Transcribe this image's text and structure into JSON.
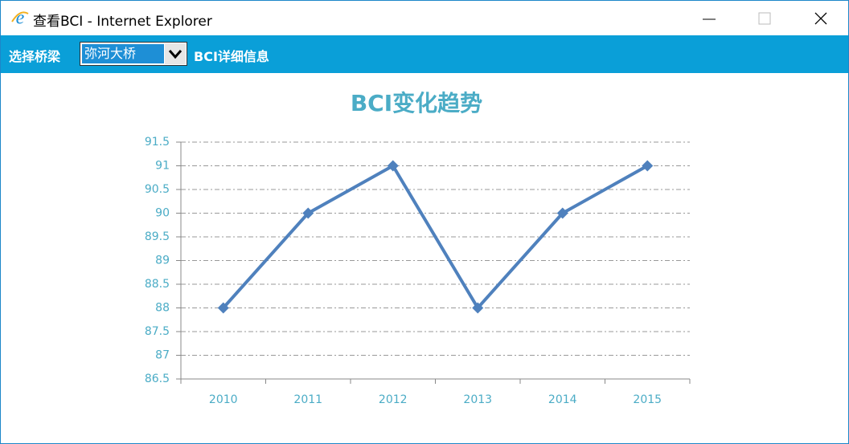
{
  "window": {
    "title": "查看BCI - Internet Explorer"
  },
  "toolbar": {
    "label": "选择桥梁",
    "selected": "弥河大桥",
    "button": "BCI详细信息"
  },
  "chart_data": {
    "type": "line",
    "title": "BCI变化趋势",
    "categories": [
      "2010",
      "2011",
      "2012",
      "2013",
      "2014",
      "2015"
    ],
    "values": [
      88,
      90,
      91,
      88,
      90,
      91
    ],
    "color": "#4f81bd",
    "ylim": [
      86.5,
      91.5
    ],
    "yticks": [
      86.5,
      87,
      87.5,
      88,
      88.5,
      89,
      89.5,
      90,
      90.5,
      91,
      91.5
    ],
    "grid": true
  }
}
